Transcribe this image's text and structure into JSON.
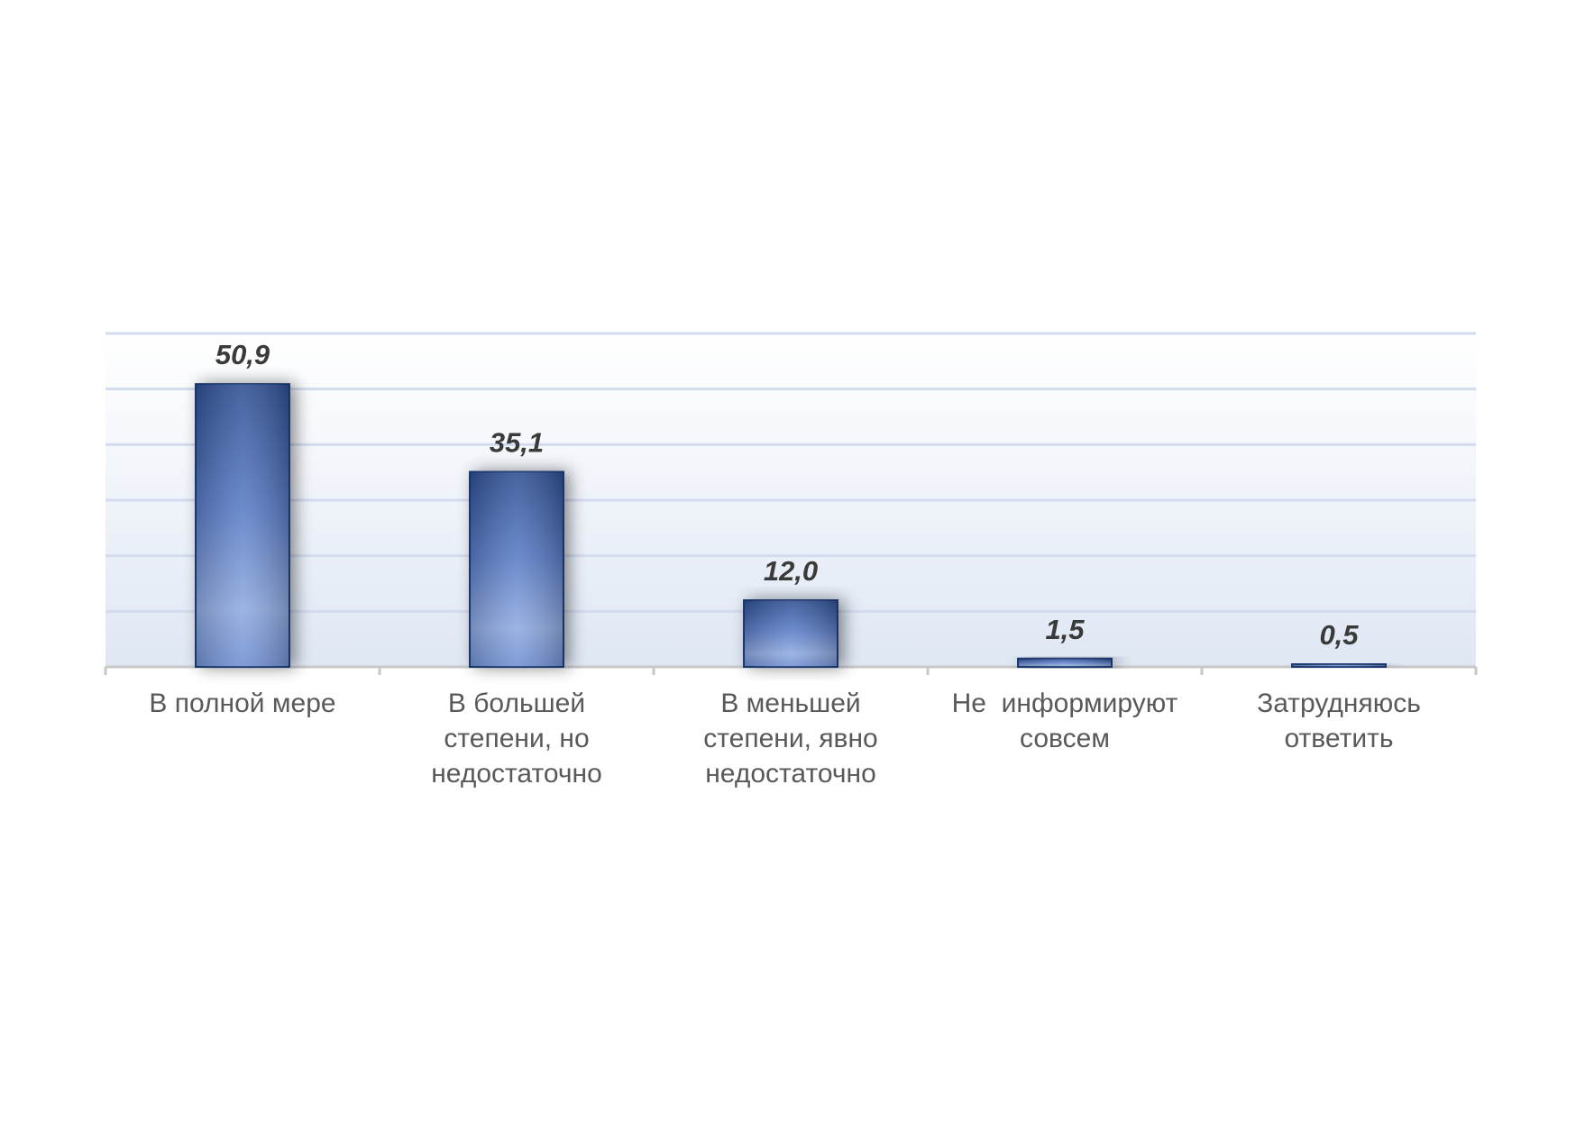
{
  "chart_data": {
    "type": "bar",
    "categories": [
      [
        "В полной мере"
      ],
      [
        "В большей",
        "степени, но",
        "недостаточно"
      ],
      [
        "В меньшей",
        "степени, явно",
        "недостаточно"
      ],
      [
        "Не  информируют",
        "совсем"
      ],
      [
        "Затрудняюсь",
        "ответить"
      ]
    ],
    "values": [
      50.9,
      35.1,
      12.0,
      1.5,
      0.5
    ],
    "value_labels": [
      "50,9",
      "35,1",
      "12,0",
      "1,5",
      "0,5"
    ],
    "ylim": [
      0,
      60
    ],
    "gridlines": [
      10,
      20,
      30,
      40,
      50,
      60
    ],
    "grid": true,
    "legend": "none",
    "colors": {
      "bar_dark": "#2e4f93",
      "bar_mid": "#5a7cc6",
      "bar_light": "#8eaae0",
      "bar_border": "#1f3a75",
      "gridline": "#d3dcee",
      "plot_bg_top": "#ffffff",
      "plot_bg_bottom": "#dfe7f4",
      "axis": "#c8c8c8"
    }
  }
}
